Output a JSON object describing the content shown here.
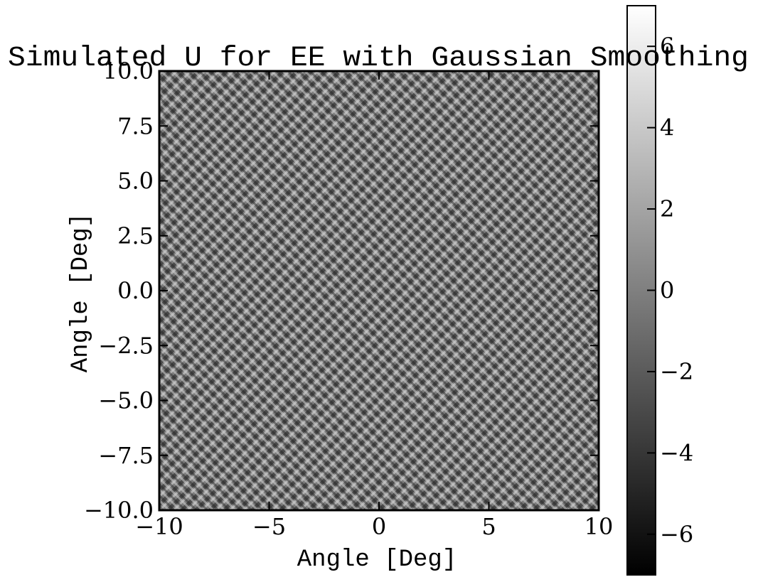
{
  "chart_data": {
    "type": "heatmap",
    "title": "Simulated U for EE with Gaussian Smoothing",
    "xlabel": "Angle [Deg]",
    "ylabel": "Angle [Deg]",
    "xlim": [
      -10,
      10
    ],
    "ylim": [
      -10,
      10
    ],
    "x_ticks": [
      -10,
      -5,
      0,
      5,
      10
    ],
    "x_tick_labels": [
      "−10",
      "−5",
      "0",
      "5",
      "10"
    ],
    "y_ticks": [
      -10,
      -7.5,
      -5,
      -2.5,
      0,
      2.5,
      5,
      7.5,
      10
    ],
    "y_tick_labels": [
      "−10.0",
      "−7.5",
      "−5.0",
      "−2.5",
      "0.0",
      "2.5",
      "5.0",
      "7.5",
      "10.0"
    ],
    "colormap": "gray",
    "colorbar": {
      "vmin": -7,
      "vmax": 7,
      "ticks": [
        -6,
        -4,
        -2,
        0,
        2,
        4,
        6
      ],
      "tick_labels": [
        "−6",
        "−4",
        "−2",
        "0",
        "2",
        "4",
        "6"
      ]
    },
    "grid": false,
    "colors": {
      "low": "#000000",
      "high": "#ffffff",
      "frame": "#000000"
    }
  }
}
